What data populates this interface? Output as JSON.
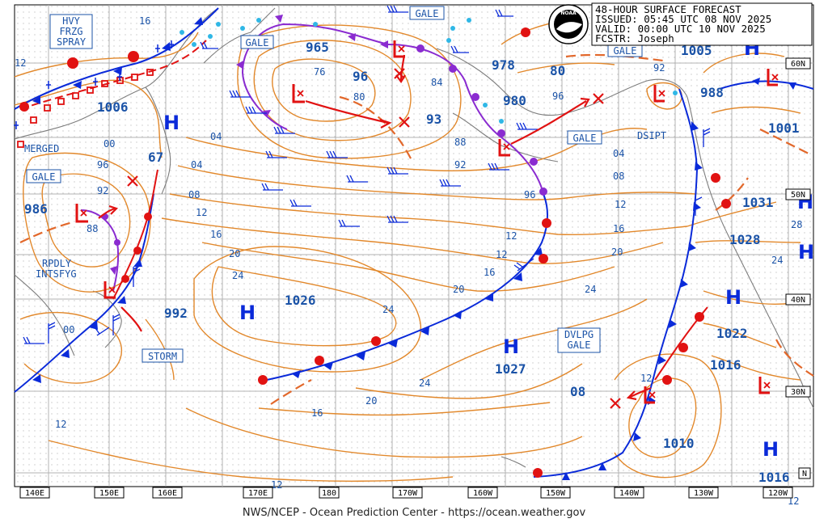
{
  "header": {
    "title": "48-HOUR SURFACE FORECAST",
    "issued": "ISSUED: 05:45 UTC 08 NOV 2025",
    "valid": "VALID:  00:00 UTC 10 NOV 2025",
    "forecaster": "FCSTR:  Joseph",
    "logo_text": "NOAA"
  },
  "footer": {
    "credit": "NWS/NCEP - Ocean Prediction Center - https://ocean.weather.gov"
  },
  "axis": {
    "lon_labels": [
      "140E",
      "150E",
      "160E",
      "170E",
      "180",
      "170W",
      "160W",
      "150W",
      "140W",
      "130W",
      "120W"
    ],
    "lat_labels": [
      "60N",
      "50N",
      "40N",
      "30N",
      "N"
    ]
  },
  "pressure_centers": [
    {
      "type": "H",
      "value": "1026"
    },
    {
      "type": "H",
      "value": "1027"
    },
    {
      "type": "H",
      "value": "1028"
    },
    {
      "type": "H",
      "value": "1022"
    },
    {
      "type": "H",
      "value": "1016"
    },
    {
      "type": "H",
      "value": "1001"
    },
    {
      "type": "H",
      "value": "1005"
    },
    {
      "type": "H",
      "value": "1016"
    },
    {
      "type": "H",
      "value": "1006"
    },
    {
      "type": "H",
      "value": "67"
    },
    {
      "type": "L",
      "value": "965"
    },
    {
      "type": "L",
      "value": "980"
    },
    {
      "type": "L",
      "value": "986"
    },
    {
      "type": "L",
      "value": "992"
    },
    {
      "type": "L",
      "value": "1010"
    },
    {
      "type": "L",
      "value": "988"
    },
    {
      "type": "L",
      "value": "1031"
    }
  ],
  "numbers": [
    "93",
    "96",
    "978",
    "80",
    "76",
    "80",
    "84",
    "88",
    "92",
    "96",
    "96",
    "00",
    "92",
    "88",
    "96",
    "00",
    "04",
    "08",
    "12",
    "16",
    "20",
    "24",
    "04",
    "08",
    "12",
    "16",
    "20",
    "24",
    "16",
    "20",
    "24",
    "08",
    "12",
    "12",
    "16",
    "12",
    "12",
    "28",
    "24",
    "96",
    "92",
    "88",
    "12",
    "16",
    "20",
    "16"
  ],
  "boxed_labels": [
    "HVY\nFRZG\nSPRAY",
    "GALE",
    "GALE",
    "GALE",
    "GALE",
    "GALE",
    "STORM",
    "DVLPG\nGALE"
  ],
  "text_labels": [
    "MERGED",
    "RPDLY\nINTSFYG",
    "DSIPT"
  ],
  "colors": {
    "isobar": "#e2882b",
    "cold_front": "#0a2ad9",
    "warm_front": "#e11212",
    "occluded": "#8a2bd0",
    "low": "#e11212",
    "high": "#0a2ad9",
    "label": "#1b53a7",
    "grid": "#b9b9b9",
    "ice": "#2fb7e6"
  }
}
